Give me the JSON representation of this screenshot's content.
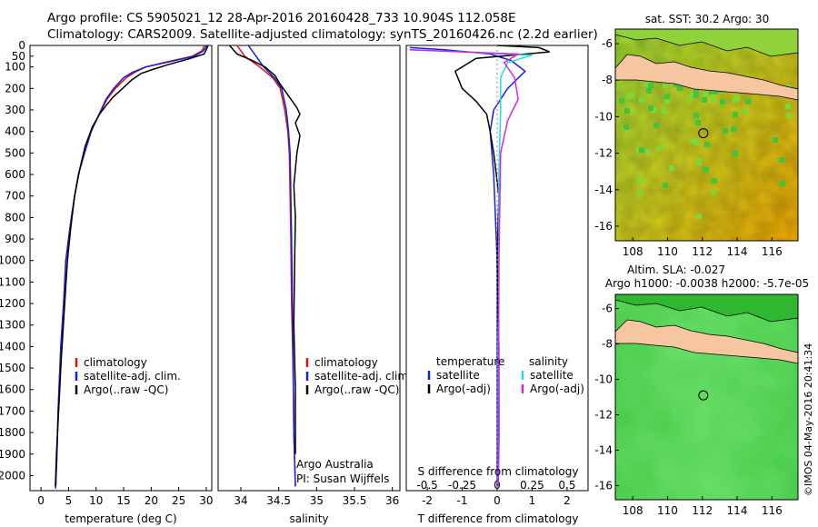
{
  "header": {
    "line1": "Argo profile: CS 5905021_12 28-Apr-2016 20160428_733 10.904S 112.058E",
    "line2": "Climatology: CARS2009. Satellite-adjusted climatology: synTS_20160426.nc (2.2d earlier)"
  },
  "footer": {
    "credit": "©IMOS 04-May-2016 20:41:34"
  },
  "colors": {
    "climatology": "#dd1111",
    "satellite": "#1122dd",
    "argo": "#000000",
    "sal_satellite": "#22dddd",
    "sal_argo": "#dd22dd",
    "land": "#f5c6a0"
  },
  "chart_data": [
    {
      "type": "line",
      "id": "temperature",
      "xlabel": "temperature (deg C)",
      "ylabel": "",
      "xlim": [
        -2,
        31
      ],
      "ylim": [
        2070,
        0
      ],
      "x_ticks": [
        0,
        5,
        10,
        15,
        20,
        25,
        30
      ],
      "y_ticks": [
        0,
        50,
        100,
        200,
        300,
        400,
        500,
        600,
        700,
        800,
        900,
        1000,
        1100,
        1200,
        1300,
        1400,
        1500,
        1600,
        1700,
        1800,
        1900,
        2000
      ],
      "legend": [
        "climatology",
        "satellite-adj. clim.",
        "Argo(..raw -QC)"
      ],
      "series": [
        {
          "name": "climatology",
          "color": "#dd1111",
          "x": [
            29.7,
            29.2,
            27.5,
            23,
            19,
            17,
            15.5,
            13.5,
            12,
            11,
            10,
            9.1,
            7.9,
            6.8,
            6.1,
            5.5,
            5.0,
            4.5,
            4.1,
            3.6,
            3.1,
            2.9,
            2.65
          ],
          "y": [
            0,
            25,
            50,
            75,
            100,
            125,
            150,
            200,
            250,
            300,
            350,
            400,
            500,
            600,
            700,
            800,
            900,
            1000,
            1200,
            1400,
            1700,
            1900,
            2060
          ]
        },
        {
          "name": "satellite-adj. clim.",
          "color": "#1122dd",
          "x": [
            30.1,
            29.5,
            27.8,
            23.5,
            19,
            16.6,
            15,
            13.2,
            11.8,
            10.9,
            10,
            9.1,
            7.9,
            6.8,
            6.1,
            5.5,
            5.0,
            4.5,
            4.1,
            3.6,
            3.1,
            2.9,
            2.65
          ],
          "y": [
            0,
            25,
            50,
            75,
            100,
            125,
            150,
            200,
            250,
            300,
            350,
            400,
            500,
            600,
            700,
            800,
            900,
            1000,
            1200,
            1400,
            1700,
            1900,
            2060
          ]
        },
        {
          "name": "Argo(..raw -QC)",
          "color": "#000000",
          "x": [
            30.3,
            30.1,
            29.6,
            26.5,
            23,
            20.5,
            18.2,
            16.5,
            14.8,
            13.1,
            11.8,
            10.6,
            9.3,
            8.0,
            7.0,
            6.1,
            5.4,
            4.8,
            4.3,
            3.7,
            3.2,
            2.8,
            2.6
          ],
          "y": [
            0,
            15,
            40,
            65,
            90,
            110,
            130,
            160,
            200,
            240,
            280,
            320,
            380,
            470,
            580,
            700,
            850,
            1000,
            1200,
            1450,
            1700,
            1900,
            2050
          ]
        }
      ]
    },
    {
      "type": "line",
      "id": "salinity",
      "xlabel": "salinity",
      "ylabel": "",
      "xlim": [
        33.7,
        36.1
      ],
      "ylim": [
        2070,
        0
      ],
      "x_ticks": [
        34,
        34.5,
        35,
        35.5,
        36
      ],
      "legend": [
        "climatology",
        "satellite-adj. clim.",
        "Argo(..raw -QC)"
      ],
      "annotation": [
        "Argo Australia",
        "PI: Susan Wijffels"
      ],
      "series": [
        {
          "name": "climatology",
          "color": "#dd1111",
          "x": [
            33.95,
            34.05,
            34.25,
            34.42,
            34.52,
            34.58,
            34.62,
            34.64,
            34.65,
            34.66,
            34.67,
            34.69,
            34.7,
            34.72
          ],
          "y": [
            0,
            50,
            100,
            150,
            200,
            300,
            400,
            500,
            700,
            900,
            1200,
            1500,
            1800,
            2050
          ]
        },
        {
          "name": "satellite-adj. clim.",
          "color": "#1122dd",
          "x": [
            34.1,
            34.2,
            34.3,
            34.44,
            34.54,
            34.6,
            34.63,
            34.65,
            34.66,
            34.67,
            34.68,
            34.69,
            34.7,
            34.72
          ],
          "y": [
            0,
            50,
            100,
            150,
            200,
            300,
            400,
            500,
            700,
            900,
            1200,
            1500,
            1800,
            2050
          ]
        },
        {
          "name": "Argo(..raw -QC)",
          "color": "#000000",
          "x": [
            33.85,
            33.95,
            34.15,
            34.32,
            34.45,
            34.52,
            34.6,
            34.68,
            34.74,
            34.78,
            34.72,
            34.78,
            34.74,
            34.7,
            34.72,
            34.71,
            34.7,
            34.72,
            34.72
          ],
          "y": [
            0,
            40,
            70,
            100,
            140,
            180,
            220,
            260,
            290,
            320,
            360,
            420,
            500,
            650,
            800,
            1000,
            1300,
            1600,
            1900
          ]
        }
      ]
    },
    {
      "type": "line",
      "id": "differences",
      "xlabel": "T difference from climatology",
      "xlabel_top": "S difference from climatology",
      "xlim": [
        -2.6,
        2.6
      ],
      "ylim": [
        2070,
        0
      ],
      "x_ticks": [
        -2,
        -1,
        0,
        1,
        2
      ],
      "x2_ticks": [
        "-0.5",
        "-0.25",
        "0",
        "0.25",
        "0.5"
      ],
      "legend_titles": [
        "temperature",
        "salinity"
      ],
      "legend": [
        "satellite",
        "Argo(-adj)",
        "satellite",
        "Argo(-adj)"
      ],
      "series": [
        {
          "name": "temperature satellite",
          "color": "#1122dd",
          "x": [
            -2.5,
            -1.5,
            -0.2,
            0.4,
            0.8,
            0.3,
            -0.1,
            -0.2,
            -0.1,
            0,
            0,
            0
          ],
          "y": [
            10,
            20,
            40,
            70,
            120,
            200,
            300,
            400,
            600,
            1000,
            1500,
            2050
          ]
        },
        {
          "name": "temperature Argo(-adj)",
          "color": "#000000",
          "x": [
            0,
            1.2,
            1.5,
            -0.6,
            -1.2,
            -1.0,
            -0.6,
            -0.3,
            -0.2,
            -0.1,
            0.05,
            0,
            0.05,
            0.05,
            0.03
          ],
          "y": [
            0,
            10,
            30,
            60,
            120,
            200,
            260,
            320,
            400,
            500,
            700,
            1000,
            1400,
            1800,
            2050
          ]
        },
        {
          "name": "salinity satellite",
          "color": "#22dddd",
          "x": [
            -2.5,
            1.0,
            0.3,
            0.1,
            0.1,
            0.05,
            0.05,
            0.03
          ],
          "y": [
            20,
            45,
            80,
            150,
            300,
            600,
            1000,
            2050
          ]
        },
        {
          "name": "salinity Argo(-adj)",
          "color": "#dd22dd",
          "x": [
            -2.5,
            0.6,
            0.2,
            0.5,
            0.6,
            0.3,
            0.1,
            0.05,
            0.03
          ],
          "y": [
            20,
            40,
            80,
            150,
            250,
            350,
            500,
            1000,
            2050
          ]
        }
      ]
    },
    {
      "type": "heatmap",
      "id": "sst_map",
      "title": "sat. SST: 30.2 Argo: 30",
      "xlim": [
        107,
        117.5
      ],
      "ylim": [
        -16.8,
        -5.2
      ],
      "x_ticks": [
        108,
        110,
        112,
        114,
        116
      ],
      "y_ticks": [
        -6,
        -8,
        -10,
        -12,
        -14,
        -16
      ],
      "marker": {
        "lon": 112.058,
        "lat": -10.904
      }
    },
    {
      "type": "heatmap",
      "id": "sla_map",
      "title": "Altim. SLA: -0.027",
      "subtitle": "Argo h1000: -0.0038 h2000: -5.7e-05",
      "xlim": [
        107,
        117.5
      ],
      "ylim": [
        -16.8,
        -5.2
      ],
      "x_ticks": [
        108,
        110,
        112,
        114,
        116
      ],
      "y_ticks": [
        -6,
        -8,
        -10,
        -12,
        -14,
        -16
      ],
      "marker": {
        "lon": 112.058,
        "lat": -10.904
      }
    }
  ]
}
